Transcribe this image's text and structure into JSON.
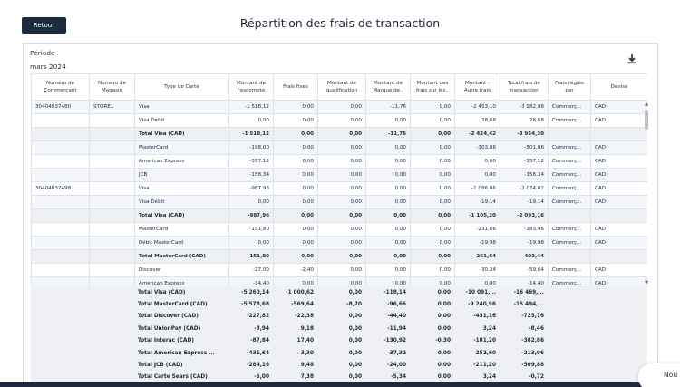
{
  "header": {
    "back_label": "Retour",
    "title": "Répartition des frais de transaction"
  },
  "filters": {
    "period_label": "Période",
    "period_value": "mars 2024"
  },
  "table": {
    "columns": [
      "Numéro de Commerçant",
      "Numéro de Magasin",
      "Type de Carte",
      "Montant de l'escompte",
      "Frais fixes",
      "Montant de qualification",
      "Montant de Marque de..",
      "Montant des frais sur les..",
      "Montant - Autre frais",
      "Total frais de transaction",
      "Frais réglés par",
      "Devise"
    ],
    "rows": [
      {
        "type": "data",
        "merchant": "30404837480",
        "store": "STORE1",
        "card": "Visa",
        "discount": "-1 518,12",
        "fixed": "0,00",
        "qualification": "0,00",
        "brand": "-11,76",
        "fees": "0,00",
        "other": "-2 453,10",
        "total": "-3 982,98",
        "paid_by": "Commerç...",
        "currency": "CAD"
      },
      {
        "type": "data",
        "merchant": "",
        "store": "",
        "card": "Visa Débit",
        "discount": "0,00",
        "fixed": "0,00",
        "qualification": "0,00",
        "brand": "0,00",
        "fees": "0,00",
        "other": "28,68",
        "total": "28,68",
        "paid_by": "Commerç...",
        "currency": "CAD"
      },
      {
        "type": "total",
        "merchant": "",
        "store": "",
        "card": "Total Visa (CAD)",
        "discount": "-1 518,12",
        "fixed": "0,00",
        "qualification": "0,00",
        "brand": "-11,76",
        "fees": "0,00",
        "other": "-2 424,42",
        "total": "-3 954,30",
        "paid_by": "",
        "currency": ""
      },
      {
        "type": "data",
        "merchant": "",
        "store": "",
        "card": "MasterCard",
        "discount": "-198,00",
        "fixed": "0,00",
        "qualification": "0,00",
        "brand": "0,00",
        "fees": "0,00",
        "other": "-303,06",
        "total": "-501,06",
        "paid_by": "Commerç...",
        "currency": "CAD"
      },
      {
        "type": "data",
        "merchant": "",
        "store": "",
        "card": "American Express",
        "discount": "-357,12",
        "fixed": "0,00",
        "qualification": "0,00",
        "brand": "0,00",
        "fees": "0,00",
        "other": "0,00",
        "total": "-357,12",
        "paid_by": "Commerç...",
        "currency": "CAD"
      },
      {
        "type": "data",
        "merchant": "",
        "store": "",
        "card": "JCB",
        "discount": "-158,34",
        "fixed": "0,00",
        "qualification": "0,00",
        "brand": "0,00",
        "fees": "0,00",
        "other": "0,00",
        "total": "-158,34",
        "paid_by": "Commerç...",
        "currency": "CAD"
      },
      {
        "type": "data",
        "merchant": "30404837498",
        "store": "",
        "card": "Visa",
        "discount": "-987,96",
        "fixed": "0,00",
        "qualification": "0,00",
        "brand": "0,00",
        "fees": "0,00",
        "other": "-1 086,06",
        "total": "-2 074,02",
        "paid_by": "Commerç...",
        "currency": "CAD"
      },
      {
        "type": "data",
        "merchant": "",
        "store": "",
        "card": "Visa Débit",
        "discount": "0,00",
        "fixed": "0,00",
        "qualification": "0,00",
        "brand": "0,00",
        "fees": "0,00",
        "other": "-19,14",
        "total": "-19,14",
        "paid_by": "Commerç...",
        "currency": "CAD"
      },
      {
        "type": "total",
        "merchant": "",
        "store": "",
        "card": "Total Visa (CAD)",
        "discount": "-987,96",
        "fixed": "0,00",
        "qualification": "0,00",
        "brand": "0,00",
        "fees": "0,00",
        "other": "-1 105,20",
        "total": "-2 093,16",
        "paid_by": "",
        "currency": ""
      },
      {
        "type": "data",
        "merchant": "",
        "store": "",
        "card": "MasterCard",
        "discount": "-151,80",
        "fixed": "0,00",
        "qualification": "0,00",
        "brand": "0,00",
        "fees": "0,00",
        "other": "-231,66",
        "total": "-383,46",
        "paid_by": "Commerç...",
        "currency": "CAD"
      },
      {
        "type": "data",
        "merchant": "",
        "store": "",
        "card": "Débit MasterCard",
        "discount": "0,00",
        "fixed": "0,00",
        "qualification": "0,00",
        "brand": "0,00",
        "fees": "0,00",
        "other": "-19,98",
        "total": "-19,98",
        "paid_by": "Commerç...",
        "currency": "CAD"
      },
      {
        "type": "total",
        "merchant": "",
        "store": "",
        "card": "Total MasterCard (CAD)",
        "discount": "-151,80",
        "fixed": "0,00",
        "qualification": "0,00",
        "brand": "0,00",
        "fees": "0,00",
        "other": "-251,64",
        "total": "-403,44",
        "paid_by": "",
        "currency": ""
      },
      {
        "type": "data",
        "merchant": "",
        "store": "",
        "card": "Discover",
        "discount": "-27,00",
        "fixed": "-2,40",
        "qualification": "0,00",
        "brand": "0,00",
        "fees": "0,00",
        "other": "-30,24",
        "total": "-59,64",
        "paid_by": "Commerç...",
        "currency": "CAD"
      },
      {
        "type": "data",
        "merchant": "",
        "store": "",
        "card": "American Express",
        "discount": "-14,40",
        "fixed": "0,00",
        "qualification": "0,00",
        "brand": "0,00",
        "fees": "0,00",
        "other": "0,00",
        "total": "-14,40",
        "paid_by": "Commerç...",
        "currency": "CAD"
      }
    ]
  },
  "summary": [
    {
      "card": "Total Visa (CAD)",
      "discount": "-5 260,14",
      "fixed": "-1 000,62",
      "qualification": "0,00",
      "brand": "-118,14",
      "fees": "0,00",
      "other": "-10 091,...",
      "total": "-16 469,..."
    },
    {
      "card": "Total MasterCard (CAD)",
      "discount": "-5 578,68",
      "fixed": "-569,64",
      "qualification": "-8,70",
      "brand": "-96,66",
      "fees": "0,00",
      "other": "-9 240,96",
      "total": "-15 494,..."
    },
    {
      "card": "Total Discover (CAD)",
      "discount": "-227,82",
      "fixed": "-22,38",
      "qualification": "0,00",
      "brand": "-44,40",
      "fees": "0,00",
      "other": "-431,16",
      "total": "-725,76"
    },
    {
      "card": "Total UnionPay (CAD)",
      "discount": "-8,94",
      "fixed": "9,18",
      "qualification": "0,00",
      "brand": "-11,94",
      "fees": "0,00",
      "other": "3,24",
      "total": "-8,46"
    },
    {
      "card": "Total Interac (CAD)",
      "discount": "-87,84",
      "fixed": "17,40",
      "qualification": "0,00",
      "brand": "-130,92",
      "fees": "-0,30",
      "other": "-181,20",
      "total": "-382,86"
    },
    {
      "card": "Total American Express ...",
      "discount": "-431,64",
      "fixed": "3,30",
      "qualification": "0,00",
      "brand": "-37,32",
      "fees": "0,00",
      "other": "252,60",
      "total": "-213,06"
    },
    {
      "card": "Total JCB (CAD)",
      "discount": "-284,16",
      "fixed": "9,48",
      "qualification": "0,00",
      "brand": "-24,00",
      "fees": "0,00",
      "other": "-211,20",
      "total": "-509,88"
    },
    {
      "card": "Total Carte Sears (CAD)",
      "discount": "-6,00",
      "fixed": "7,38",
      "qualification": "0,00",
      "brand": "-5,34",
      "fees": "0,00",
      "other": "3,24",
      "total": "-0,72"
    }
  ],
  "chat": {
    "label": "Nou"
  },
  "icons": {
    "download": "download-icon",
    "scroll_up": "chevron-up-icon",
    "scroll_down": "chevron-down-icon"
  },
  "colors": {
    "primary": "#1b2a3c",
    "row_alt": "#f2f6fa",
    "total_row": "#eef0f3"
  }
}
